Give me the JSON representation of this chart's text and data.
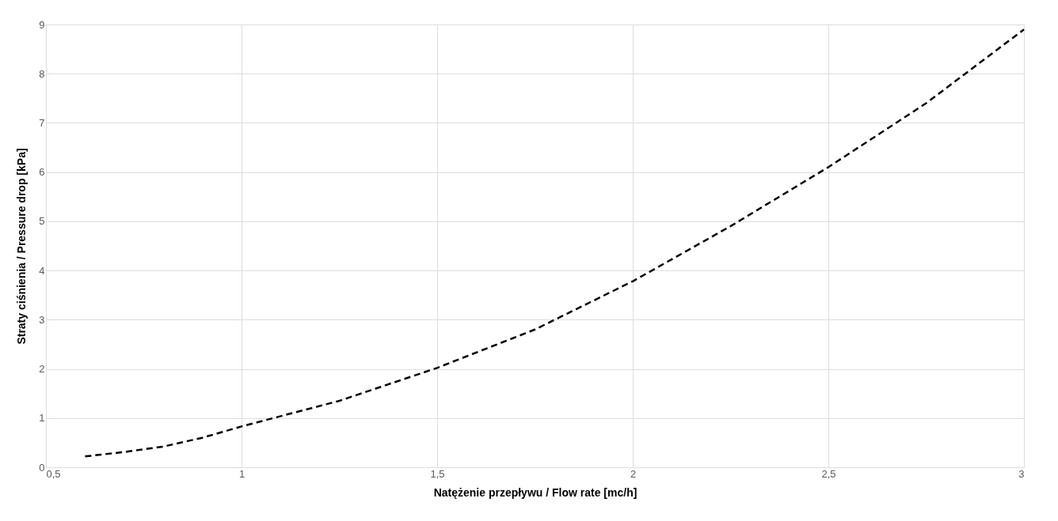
{
  "chart_data": {
    "type": "line",
    "xlabel": "Natężenie przepływu / Flow rate [mc/h]",
    "ylabel": "Straty ciśnienia / Pressure drop [kPa]",
    "x": [
      0.6,
      0.7,
      0.8,
      0.9,
      1.0,
      1.25,
      1.5,
      1.75,
      2.0,
      2.25,
      2.5,
      2.75,
      3.0
    ],
    "series": [
      {
        "color": "#000000",
        "values": [
          0.22,
          0.31,
          0.42,
          0.6,
          0.83,
          1.35,
          2.02,
          2.8,
          3.78,
          4.9,
          6.1,
          7.4,
          8.9
        ]
      }
    ],
    "xlim": [
      0.5,
      3
    ],
    "xticks": [
      {
        "value": 0.5,
        "label": "0,5"
      },
      1,
      {
        "value": 1.5,
        "label": "1,5"
      },
      2,
      {
        "value": 2.5,
        "label": "2,5"
      },
      3
    ],
    "ylim": [
      0,
      9
    ],
    "yticks": [
      0,
      1,
      2,
      3,
      4,
      5,
      6,
      7,
      8,
      9
    ],
    "grid": true,
    "line_style": "dashed",
    "marker": "none"
  }
}
